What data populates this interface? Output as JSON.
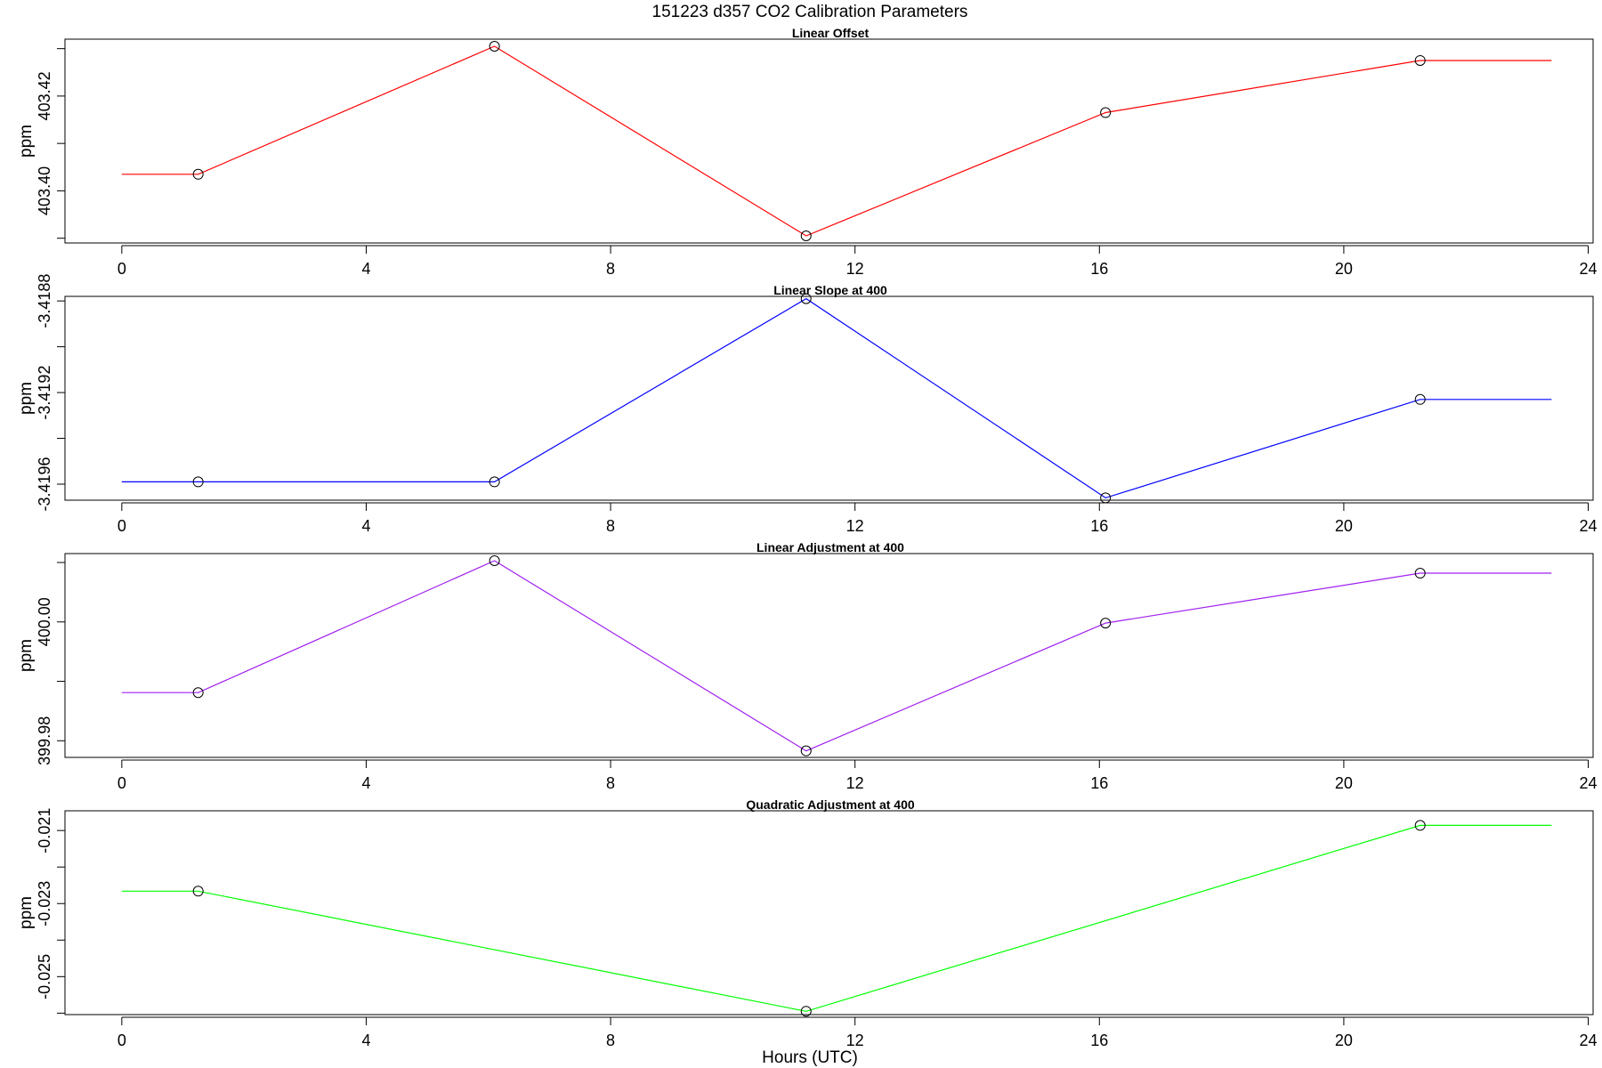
{
  "title": "151223   d357   CO2 Calibration Parameters",
  "xlabel": "Hours (UTC)",
  "chart_data": [
    {
      "type": "line",
      "title": "Linear Offset",
      "ylabel": "ppm",
      "color": "#ff0000",
      "x": [
        0,
        1.25,
        6.1,
        11.2,
        16.1,
        21.25,
        23.4
      ],
      "values": [
        403.4035,
        403.4035,
        403.4305,
        403.3905,
        403.4165,
        403.4275,
        403.4275
      ],
      "markers": [
        false,
        true,
        true,
        true,
        true,
        true,
        false
      ],
      "xlim": [
        -0.93,
        24.08
      ],
      "ylim": [
        403.389,
        403.432
      ],
      "xticks": [
        0,
        4,
        8,
        12,
        16,
        20,
        24
      ],
      "yticks": [
        403.4,
        403.42
      ],
      "yminor": [
        403.39,
        403.41,
        403.43
      ],
      "ytick_labels": [
        "403.40",
        "403.42"
      ]
    },
    {
      "type": "line",
      "title": "Linear Slope at 400",
      "ylabel": "ppm",
      "color": "#0000ff",
      "x": [
        0,
        1.25,
        6.1,
        11.2,
        16.1,
        21.25,
        23.4
      ],
      "values": [
        -3.41959,
        -3.41959,
        -3.41959,
        -3.41879,
        -3.41966,
        -3.41923,
        -3.41923
      ],
      "markers": [
        false,
        true,
        true,
        true,
        true,
        true,
        false
      ],
      "xlim": [
        -0.93,
        24.08
      ],
      "ylim": [
        -3.41967,
        -3.41878
      ],
      "xticks": [
        0,
        4,
        8,
        12,
        16,
        20,
        24
      ],
      "yticks": [
        -3.4196,
        -3.4192,
        -3.4188
      ],
      "yminor": [
        -3.4194,
        -3.419
      ],
      "ytick_labels": [
        "-3.4196",
        "-3.4192",
        "-3.4188"
      ]
    },
    {
      "type": "line",
      "title": "Linear Adjustment at 400",
      "ylabel": "ppm",
      "color": "#a020f0",
      "x": [
        0,
        1.25,
        6.1,
        11.2,
        16.1,
        21.25,
        23.4
      ],
      "values": [
        399.9881,
        399.9881,
        400.0103,
        399.9783,
        399.9998,
        400.0082,
        400.0082
      ],
      "markers": [
        false,
        true,
        true,
        true,
        true,
        true,
        false
      ],
      "xlim": [
        -0.93,
        24.08
      ],
      "ylim": [
        399.9772,
        400.0115
      ],
      "xticks": [
        0,
        4,
        8,
        12,
        16,
        20,
        24
      ],
      "yticks": [
        399.98,
        400.0
      ],
      "yminor": [
        399.99,
        400.01
      ],
      "ytick_labels": [
        "399.98",
        "400.00"
      ]
    },
    {
      "type": "line",
      "title": "Quadratic Adjustment at 400",
      "ylabel": "ppm",
      "color": "#00ff00",
      "x": [
        0,
        1.25,
        6.1,
        11.2,
        16.1,
        21.25,
        23.4
      ],
      "values": [
        -0.02266,
        -0.02266,
        null,
        -0.02595,
        null,
        -0.02086,
        -0.02086
      ],
      "markers": [
        false,
        true,
        false,
        true,
        false,
        true,
        false
      ],
      "xlim": [
        -0.93,
        24.08
      ],
      "ylim": [
        -0.02604,
        -0.02046
      ],
      "xticks": [
        0,
        4,
        8,
        12,
        16,
        20,
        24
      ],
      "yticks": [
        -0.025,
        -0.023,
        -0.021
      ],
      "yminor": [
        -0.026,
        -0.024,
        -0.022
      ],
      "ytick_labels": [
        "-0.025",
        "-0.023",
        "-0.021"
      ]
    }
  ]
}
